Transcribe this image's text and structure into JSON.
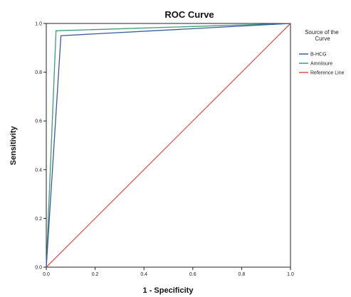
{
  "chart_data": {
    "type": "line",
    "title": "ROC Curve",
    "xlabel": "1 - Specificity",
    "ylabel": "Sensitivity",
    "xlim": [
      0,
      1
    ],
    "ylim": [
      0,
      1
    ],
    "x_ticks": [
      "0.0",
      "0.2",
      "0.4",
      "0.6",
      "0.8",
      "1.0"
    ],
    "y_ticks": [
      "0.0",
      "0.2",
      "0.4",
      "0.6",
      "0.8",
      "1.0"
    ],
    "grid": false,
    "legend": {
      "title": "Source of the Curve",
      "placement": "right",
      "entries": [
        "B-HCG",
        "Amniisure",
        "Reference Line"
      ]
    },
    "series": [
      {
        "name": "B-HCG",
        "color": "#3b5a9a",
        "x": [
          0.0,
          0.06,
          1.0
        ],
        "y": [
          0.0,
          0.95,
          1.0
        ]
      },
      {
        "name": "Amniisure",
        "color": "#3e9a78",
        "x": [
          0.0,
          0.04,
          1.0
        ],
        "y": [
          0.0,
          0.97,
          1.0
        ]
      },
      {
        "name": "Reference Line",
        "color": "#d9534f",
        "x": [
          0.0,
          1.0
        ],
        "y": [
          0.0,
          1.0
        ]
      }
    ]
  }
}
